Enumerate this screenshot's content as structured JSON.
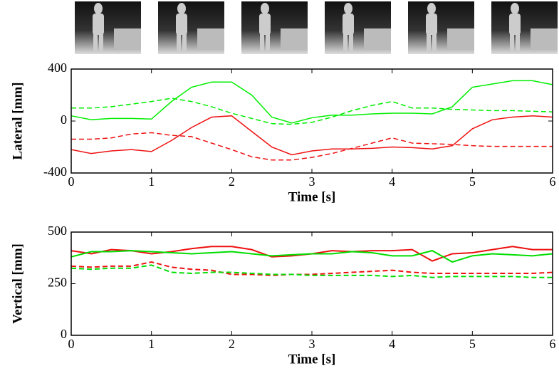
{
  "chart_data": [
    {
      "type": "line",
      "ylabel": "Lateral [mm]",
      "xlabel": "Time [s]",
      "x": [
        0,
        0.25,
        0.5,
        0.75,
        1,
        1.25,
        1.5,
        1.75,
        2,
        2.25,
        2.5,
        2.75,
        3,
        3.25,
        3.5,
        3.75,
        4,
        4.25,
        4.5,
        4.75,
        5,
        5.25,
        5.5,
        5.75,
        6
      ],
      "xlim": [
        0,
        6
      ],
      "xticks": [
        0,
        1,
        2,
        3,
        4,
        5,
        6
      ],
      "ylim": [
        -400,
        400
      ],
      "yticks": [
        -400,
        0,
        400
      ],
      "grid": false,
      "series": [
        {
          "color": "#00ee00",
          "dashed": false,
          "values": [
            40,
            10,
            20,
            20,
            15,
            150,
            260,
            300,
            300,
            200,
            30,
            -15,
            25,
            45,
            45,
            55,
            60,
            60,
            55,
            110,
            260,
            285,
            310,
            310,
            280
          ]
        },
        {
          "color": "#00ee00",
          "dashed": true,
          "values": [
            100,
            100,
            110,
            130,
            150,
            175,
            150,
            110,
            60,
            20,
            -20,
            -25,
            -10,
            30,
            80,
            120,
            150,
            100,
            100,
            90,
            85,
            80,
            80,
            75,
            70
          ]
        },
        {
          "color": "#ee1111",
          "dashed": false,
          "values": [
            -220,
            -250,
            -230,
            -220,
            -235,
            -150,
            -50,
            30,
            40,
            -80,
            -200,
            -260,
            -230,
            -215,
            -215,
            -210,
            -200,
            -205,
            -215,
            -190,
            -60,
            10,
            30,
            40,
            30
          ]
        },
        {
          "color": "#ee1111",
          "dashed": true,
          "values": [
            -140,
            -140,
            -130,
            -100,
            -90,
            -110,
            -120,
            -170,
            -220,
            -275,
            -300,
            -300,
            -280,
            -250,
            -210,
            -170,
            -130,
            -170,
            -175,
            -180,
            -190,
            -195,
            -195,
            -195,
            -195
          ]
        }
      ]
    },
    {
      "type": "line",
      "ylabel": "Vertical [mm]",
      "xlabel": "Time [s]",
      "x": [
        0,
        0.25,
        0.5,
        0.75,
        1,
        1.25,
        1.5,
        1.75,
        2,
        2.25,
        2.5,
        2.75,
        3,
        3.25,
        3.5,
        3.75,
        4,
        4.25,
        4.5,
        4.75,
        5,
        5.25,
        5.5,
        5.75,
        6
      ],
      "xlim": [
        0,
        6
      ],
      "xticks": [
        0,
        1,
        2,
        3,
        4,
        5,
        6
      ],
      "ylim": [
        0,
        500
      ],
      "yticks": [
        0,
        250,
        500
      ],
      "grid": false,
      "series": [
        {
          "color": "#ee1111",
          "dashed": false,
          "values": [
            410,
            395,
            415,
            410,
            395,
            405,
            420,
            430,
            430,
            415,
            380,
            385,
            395,
            410,
            405,
            410,
            410,
            415,
            360,
            395,
            400,
            415,
            430,
            415,
            415
          ]
        },
        {
          "color": "#00dd00",
          "dashed": false,
          "values": [
            380,
            405,
            405,
            410,
            405,
            400,
            395,
            400,
            405,
            395,
            385,
            390,
            395,
            395,
            405,
            400,
            385,
            385,
            410,
            355,
            385,
            395,
            390,
            385,
            395
          ]
        },
        {
          "color": "#ee1111",
          "dashed": true,
          "values": [
            335,
            330,
            335,
            335,
            355,
            330,
            320,
            315,
            295,
            295,
            290,
            295,
            295,
            300,
            305,
            310,
            315,
            305,
            300,
            300,
            300,
            300,
            300,
            300,
            305
          ]
        },
        {
          "color": "#00dd00",
          "dashed": true,
          "values": [
            325,
            320,
            325,
            325,
            340,
            305,
            300,
            305,
            305,
            300,
            295,
            295,
            290,
            290,
            290,
            290,
            285,
            290,
            280,
            285,
            285,
            285,
            285,
            280,
            280
          ]
        }
      ]
    }
  ]
}
